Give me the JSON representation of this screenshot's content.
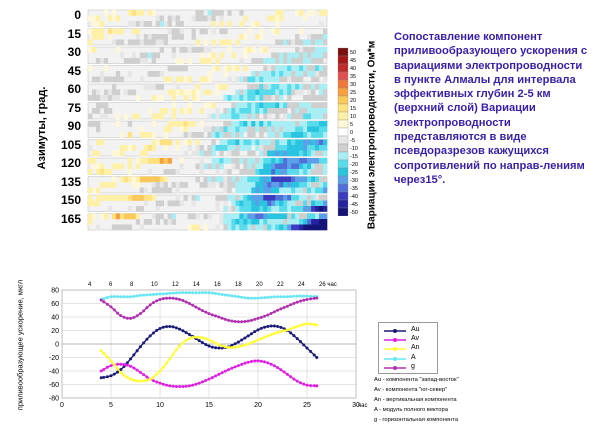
{
  "description": "Сопоставление компонент приливообразующего ускорения с вариациями электропроводности в пункте Алмалы для интервала эффективных глубин 2-5 км (верхний слой) Вариации электропроводности представляются в виде псевдоразрезов кажущихся сопротивлений по направ-лениям через15°.",
  "top_panel": {
    "y_label": "Азимуты, град.",
    "azimuths": [
      "0",
      "15",
      "30",
      "45",
      "60",
      "75",
      "90",
      "105",
      "120",
      "135",
      "150",
      "165"
    ],
    "x_ticks": [
      "4",
      "6",
      "8",
      "10",
      "12",
      "14",
      "16",
      "18",
      "20",
      "22",
      "24",
      "26 час"
    ],
    "colorbar": {
      "title": "Вариации электропроводности, Ом*м",
      "labels": [
        "50",
        "45",
        "40",
        "35",
        "30",
        "25",
        "20",
        "15",
        "10",
        "5",
        "0",
        "-5",
        "-10",
        "-15",
        "-20",
        "-25",
        "-30",
        "-35",
        "-40",
        "-45",
        "-50"
      ],
      "colors": [
        "#7b1010",
        "#a51818",
        "#c02a2a",
        "#e05050",
        "#f07838",
        "#f8a040",
        "#fbc85a",
        "#fde27f",
        "#fff0a8",
        "#fff8d8",
        "#ffffff",
        "#e6e6e6",
        "#cfcfcf",
        "#a8eef4",
        "#58dcec",
        "#28c4e0",
        "#5aa0e8",
        "#5070d8",
        "#3c3cc0",
        "#2424a0",
        "#141478"
      ]
    }
  },
  "bottom_panel": {
    "y_label": "приливообразующее ускорение, мкгл",
    "legend_items": [
      "Au",
      "Av",
      "An",
      "A",
      "g"
    ],
    "legend_desc": [
      "Au - компонента \"запад-восток\"",
      "Av - компонента \"юг-север\"",
      "An - вертикальная компонента",
      "A - модуль полного вектора",
      "g - горизонтальная компонента"
    ]
  },
  "chart_data": [
    {
      "type": "heatmap",
      "title": "",
      "ylabel": "Азимуты, град.",
      "xlabel": "",
      "x_range": [
        4,
        26
      ],
      "x_unit": "час",
      "rows": [
        "0",
        "15",
        "30",
        "45",
        "60",
        "75",
        "90",
        "105",
        "120",
        "135",
        "150",
        "165"
      ],
      "value_range": [
        -50,
        50
      ],
      "colorbar_title": "Вариации электропроводности, Ом*м"
    },
    {
      "type": "line",
      "xlabel": "час",
      "ylabel": "приливообразующее ускорение, мкгл",
      "xlim": [
        0,
        30
      ],
      "ylim": [
        -80,
        80
      ],
      "x_ticks": [
        0,
        5,
        10,
        15,
        20,
        25,
        30
      ],
      "y_ticks": [
        -80,
        -60,
        -40,
        -20,
        0,
        20,
        40,
        60,
        80
      ],
      "grid": true,
      "x": [
        4,
        5,
        6,
        7,
        8,
        9,
        10,
        11,
        12,
        13,
        14,
        15,
        16,
        17,
        18,
        19,
        20,
        21,
        22,
        23,
        24,
        25,
        26
      ],
      "series": [
        {
          "name": "Au",
          "color": "#1a1a78",
          "values": [
            -50,
            -47,
            -38,
            -22,
            -4,
            12,
            23,
            26,
            22,
            14,
            5,
            -3,
            -6,
            -4,
            3,
            12,
            21,
            26,
            26,
            20,
            8,
            -6,
            -20
          ]
        },
        {
          "name": "Av",
          "color": "#e020e0",
          "values": [
            -40,
            -32,
            -30,
            -33,
            -42,
            -52,
            -58,
            -62,
            -63,
            -62,
            -58,
            -52,
            -45,
            -38,
            -32,
            -27,
            -25,
            -28,
            -35,
            -45,
            -55,
            -61,
            -62
          ]
        },
        {
          "name": "An",
          "color": "#ffff33",
          "values": [
            -10,
            -25,
            -42,
            -52,
            -55,
            -52,
            -40,
            -22,
            -3,
            8,
            10,
            6,
            -1,
            -5,
            -4,
            0,
            6,
            12,
            17,
            21,
            26,
            30,
            28
          ]
        },
        {
          "name": "A",
          "color": "#66e6f2",
          "values": [
            66,
            70,
            70,
            70,
            72,
            73,
            74,
            75,
            76,
            76,
            76,
            76,
            74,
            72,
            70,
            68,
            68,
            69,
            70,
            70,
            71,
            71,
            70
          ]
        },
        {
          "name": "g",
          "color": "#b030b0",
          "values": [
            65,
            55,
            42,
            38,
            45,
            58,
            66,
            68,
            66,
            60,
            52,
            45,
            40,
            35,
            33,
            34,
            38,
            43,
            50,
            56,
            62,
            66,
            68
          ]
        }
      ]
    }
  ]
}
